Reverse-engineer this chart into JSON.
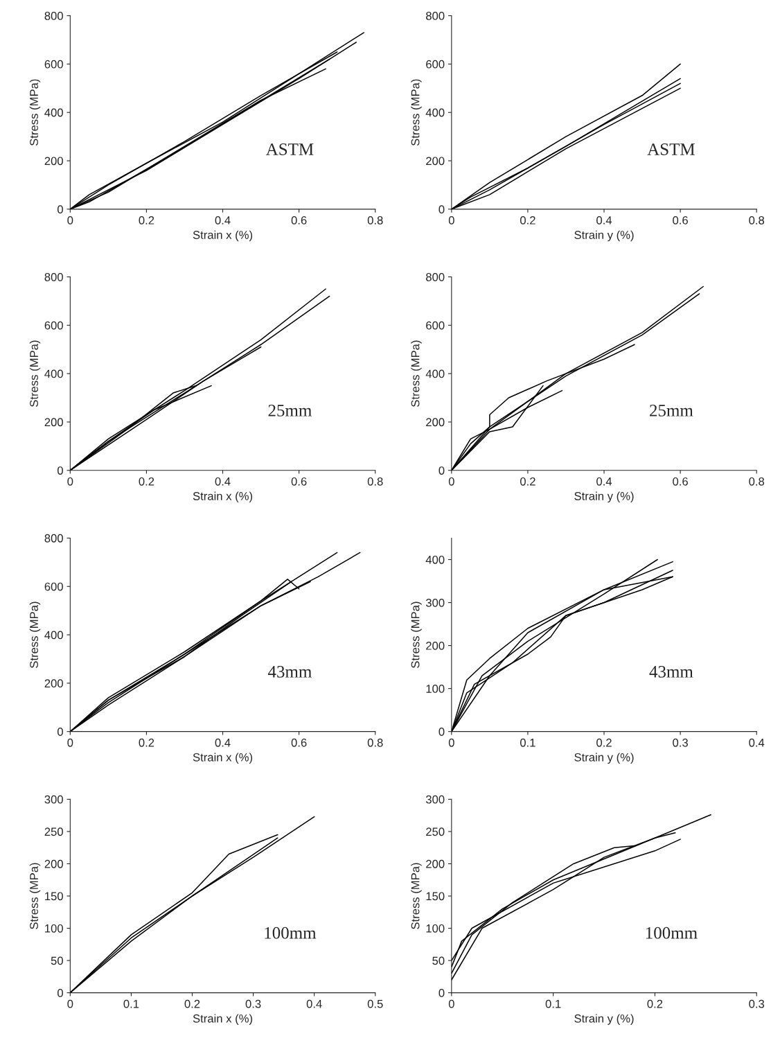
{
  "chart_data": [
    {
      "type": "line",
      "xlabel": "Strain x (%)",
      "ylabel": "Stress (MPa)",
      "annotations": [
        "ASTM"
      ],
      "xlim": [
        0,
        0.8
      ],
      "ylim": [
        0,
        800
      ],
      "xticks": [
        0,
        0.2,
        0.4,
        0.6,
        0.8
      ],
      "yticks": [
        0,
        200,
        400,
        600,
        800
      ],
      "grid": false,
      "legend": false,
      "series": [
        {
          "color": "#000000",
          "x": [
            0,
            0.05,
            0.2,
            0.4,
            0.6,
            0.77
          ],
          "values": [
            0,
            60,
            190,
            360,
            560,
            730
          ]
        },
        {
          "color": "#000000",
          "x": [
            0,
            0.1,
            0.3,
            0.5,
            0.67
          ],
          "values": [
            0,
            70,
            260,
            450,
            580
          ]
        },
        {
          "color": "#000000",
          "x": [
            0,
            0.2,
            0.4,
            0.6,
            0.75
          ],
          "values": [
            0,
            160,
            350,
            540,
            690
          ]
        },
        {
          "color": "#000000",
          "x": [
            0,
            0.1,
            0.3,
            0.5,
            0.7
          ],
          "values": [
            0,
            100,
            280,
            470,
            650
          ]
        },
        {
          "color": "#000000",
          "x": [
            0,
            0.05,
            0.25,
            0.45,
            0.68
          ],
          "values": [
            0,
            30,
            210,
            400,
            620
          ]
        }
      ]
    },
    {
      "type": "line",
      "xlabel": "Strain y (%)",
      "ylabel": "Stress (MPa)",
      "annotations": [
        "ASTM"
      ],
      "xlim": [
        0,
        0.8
      ],
      "ylim": [
        0,
        800
      ],
      "xticks": [
        0,
        0.2,
        0.4,
        0.6,
        0.8
      ],
      "yticks": [
        0,
        200,
        400,
        600,
        800
      ],
      "grid": false,
      "legend": false,
      "series": [
        {
          "color": "#000000",
          "x": [
            0,
            0.1,
            0.3,
            0.5,
            0.6
          ],
          "values": [
            0,
            110,
            300,
            470,
            600
          ]
        },
        {
          "color": "#000000",
          "x": [
            0,
            0.1,
            0.3,
            0.6
          ],
          "values": [
            0,
            60,
            250,
            500
          ]
        },
        {
          "color": "#000000",
          "x": [
            0,
            0.1,
            0.3,
            0.6
          ],
          "values": [
            0,
            80,
            260,
            540
          ]
        },
        {
          "color": "#000000",
          "x": [
            0,
            0.05,
            0.2,
            0.4,
            0.6
          ],
          "values": [
            0,
            50,
            170,
            350,
            520
          ]
        }
      ]
    },
    {
      "type": "line",
      "xlabel": "Strain x (%)",
      "ylabel": "Stress (MPa)",
      "annotations": [
        "25mm"
      ],
      "xlim": [
        0,
        0.8
      ],
      "ylim": [
        0,
        800
      ],
      "xticks": [
        0,
        0.2,
        0.4,
        0.6,
        0.8
      ],
      "yticks": [
        0,
        200,
        400,
        600,
        800
      ],
      "grid": false,
      "legend": false,
      "series": [
        {
          "color": "#000000",
          "x": [
            0,
            0.1,
            0.3,
            0.5,
            0.67
          ],
          "values": [
            0,
            130,
            330,
            540,
            750
          ]
        },
        {
          "color": "#000000",
          "x": [
            0,
            0.1,
            0.3,
            0.5,
            0.68
          ],
          "values": [
            0,
            120,
            320,
            520,
            720
          ]
        },
        {
          "color": "#000000",
          "x": [
            0,
            0.2,
            0.35,
            0.5
          ],
          "values": [
            0,
            210,
            370,
            510
          ]
        },
        {
          "color": "#000000",
          "x": [
            0,
            0.1,
            0.22,
            0.37
          ],
          "values": [
            0,
            120,
            250,
            350
          ]
        },
        {
          "color": "#000000",
          "x": [
            0,
            0.15,
            0.27,
            0.33
          ],
          "values": [
            0,
            170,
            320,
            350
          ]
        }
      ]
    },
    {
      "type": "line",
      "xlabel": "Strain y (%)",
      "ylabel": "Stress (MPa)",
      "annotations": [
        "25mm"
      ],
      "xlim": [
        0,
        0.8
      ],
      "ylim": [
        0,
        800
      ],
      "xticks": [
        0,
        0.2,
        0.4,
        0.6,
        0.8
      ],
      "yticks": [
        0,
        200,
        400,
        600,
        800
      ],
      "grid": false,
      "legend": false,
      "series": [
        {
          "color": "#000000",
          "x": [
            0,
            0.05,
            0.1,
            0.2,
            0.29
          ],
          "values": [
            0,
            130,
            170,
            260,
            330
          ]
        },
        {
          "color": "#000000",
          "x": [
            0,
            0.05,
            0.1,
            0.1,
            0.15,
            0.25,
            0.4,
            0.48
          ],
          "values": [
            0,
            110,
            180,
            230,
            300,
            370,
            460,
            520
          ]
        },
        {
          "color": "#000000",
          "x": [
            0,
            0.1,
            0.16,
            0.24
          ],
          "values": [
            0,
            160,
            180,
            350
          ]
        },
        {
          "color": "#000000",
          "x": [
            0,
            0.1,
            0.3,
            0.5,
            0.66
          ],
          "values": [
            0,
            170,
            400,
            570,
            760
          ]
        },
        {
          "color": "#000000",
          "x": [
            0,
            0.1,
            0.3,
            0.5,
            0.65
          ],
          "values": [
            0,
            180,
            390,
            560,
            730
          ]
        }
      ]
    },
    {
      "type": "line",
      "xlabel": "Strain x (%)",
      "ylabel": "Stress (MPa)",
      "annotations": [
        "43mm"
      ],
      "xlim": [
        0,
        0.8
      ],
      "ylim": [
        0,
        800
      ],
      "xticks": [
        0,
        0.2,
        0.4,
        0.6,
        0.8
      ],
      "yticks": [
        0,
        200,
        400,
        600,
        800
      ],
      "grid": false,
      "legend": false,
      "series": [
        {
          "color": "#000000",
          "x": [
            0,
            0.1,
            0.3,
            0.5,
            0.7
          ],
          "values": [
            0,
            140,
            330,
            540,
            740
          ]
        },
        {
          "color": "#000000",
          "x": [
            0,
            0.1,
            0.3,
            0.5,
            0.65,
            0.76
          ],
          "values": [
            0,
            130,
            320,
            520,
            640,
            740
          ]
        },
        {
          "color": "#000000",
          "x": [
            0,
            0.1,
            0.3,
            0.5,
            0.57,
            0.6
          ],
          "values": [
            0,
            120,
            320,
            540,
            630,
            590
          ]
        },
        {
          "color": "#000000",
          "x": [
            0,
            0.1,
            0.3,
            0.5,
            0.63
          ],
          "values": [
            0,
            130,
            310,
            520,
            620
          ]
        },
        {
          "color": "#000000",
          "x": [
            0,
            0.1,
            0.3,
            0.45,
            0.58
          ],
          "values": [
            0,
            110,
            310,
            480,
            620
          ]
        }
      ]
    },
    {
      "type": "line",
      "xlabel": "Strain y (%)",
      "ylabel": "Stress (MPa)",
      "annotations": [
        "43mm"
      ],
      "xlim": [
        0,
        0.4
      ],
      "ylim": [
        0,
        450
      ],
      "xticks": [
        0,
        0.1,
        0.2,
        0.3,
        0.4
      ],
      "yticks": [
        0,
        100,
        200,
        300,
        400
      ],
      "grid": false,
      "legend": false,
      "series": [
        {
          "color": "#000000",
          "x": [
            0,
            0.02,
            0.05,
            0.1,
            0.2,
            0.29
          ],
          "values": [
            0,
            120,
            170,
            240,
            330,
            360
          ]
        },
        {
          "color": "#000000",
          "x": [
            0,
            0.03,
            0.1,
            0.13,
            0.15,
            0.25,
            0.29
          ],
          "values": [
            0,
            110,
            180,
            220,
            270,
            330,
            360
          ]
        },
        {
          "color": "#000000",
          "x": [
            0,
            0.05,
            0.1,
            0.2,
            0.29
          ],
          "values": [
            0,
            130,
            230,
            330,
            395
          ]
        },
        {
          "color": "#000000",
          "x": [
            0,
            0.02,
            0.08,
            0.15,
            0.2,
            0.29
          ],
          "values": [
            0,
            90,
            160,
            270,
            300,
            375
          ]
        },
        {
          "color": "#000000",
          "x": [
            0,
            0.04,
            0.1,
            0.2,
            0.27
          ],
          "values": [
            0,
            130,
            210,
            320,
            400
          ]
        }
      ]
    },
    {
      "type": "line",
      "xlabel": "Strain x (%)",
      "ylabel": "Stress (MPa)",
      "annotations": [
        "100mm"
      ],
      "xlim": [
        0,
        0.5
      ],
      "ylim": [
        0,
        300
      ],
      "xticks": [
        0,
        0.1,
        0.2,
        0.3,
        0.4,
        0.5
      ],
      "yticks": [
        0,
        50,
        100,
        150,
        200,
        250,
        300
      ],
      "grid": false,
      "legend": false,
      "series": [
        {
          "color": "#000000",
          "x": [
            0,
            0.1,
            0.2,
            0.26,
            0.3,
            0.34
          ],
          "values": [
            0,
            90,
            155,
            215,
            230,
            245
          ]
        },
        {
          "color": "#000000",
          "x": [
            0,
            0.1,
            0.2,
            0.3,
            0.4
          ],
          "values": [
            0,
            85,
            150,
            210,
            273
          ]
        },
        {
          "color": "#000000",
          "x": [
            0,
            0.1,
            0.2,
            0.34
          ],
          "values": [
            0,
            80,
            150,
            240
          ]
        }
      ]
    },
    {
      "type": "line",
      "xlabel": "Strain y (%)",
      "ylabel": "Stress (MPa)",
      "annotations": [
        "100mm"
      ],
      "xlim": [
        0,
        0.3
      ],
      "ylim": [
        0,
        300
      ],
      "xticks": [
        0,
        0.1,
        0.2,
        0.3
      ],
      "yticks": [
        0,
        50,
        100,
        150,
        200,
        250,
        300
      ],
      "grid": false,
      "legend": false,
      "series": [
        {
          "color": "#000000",
          "x": [
            0,
            0.01,
            0.05,
            0.1,
            0.2,
            0.255
          ],
          "values": [
            40,
            80,
            130,
            175,
            240,
            276
          ]
        },
        {
          "color": "#000000",
          "x": [
            0,
            0.02,
            0.06,
            0.12,
            0.16,
            0.18
          ],
          "values": [
            30,
            90,
            140,
            200,
            225,
            228
          ]
        },
        {
          "color": "#000000",
          "x": [
            0,
            0.02,
            0.1,
            0.2,
            0.225
          ],
          "values": [
            50,
            100,
            170,
            220,
            238
          ]
        },
        {
          "color": "#000000",
          "x": [
            0,
            0.03,
            0.1,
            0.15,
            0.2,
            0.22
          ],
          "values": [
            20,
            100,
            160,
            210,
            240,
            248
          ]
        }
      ]
    }
  ]
}
